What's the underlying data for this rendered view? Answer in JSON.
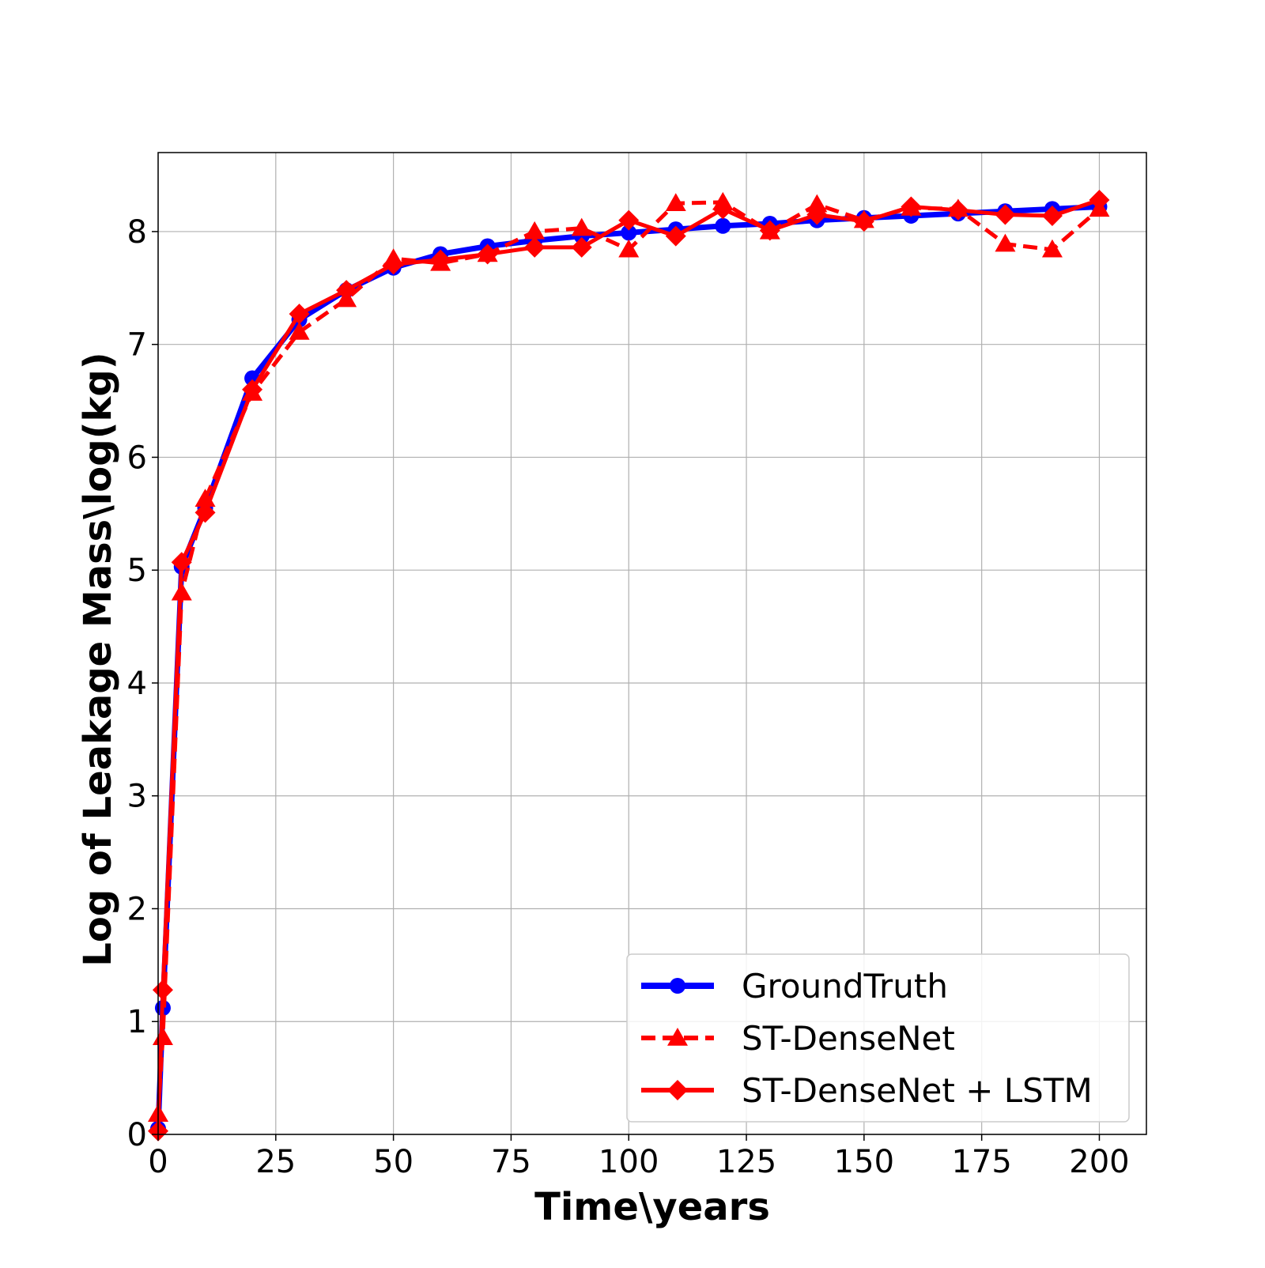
{
  "chart_data": {
    "type": "line",
    "title": "",
    "xlabel": "Time\\years",
    "ylabel": "Log of Leakage Mass\\log(kg)",
    "xlim": [
      0,
      210
    ],
    "ylim": [
      0,
      8.7
    ],
    "xticks": [
      0,
      25,
      50,
      75,
      100,
      125,
      150,
      175,
      200
    ],
    "yticks": [
      0,
      1,
      2,
      3,
      4,
      5,
      6,
      7,
      8
    ],
    "grid": true,
    "legend_position": "lower-right",
    "x": [
      0,
      1,
      5,
      10,
      20,
      30,
      40,
      50,
      60,
      70,
      80,
      90,
      100,
      110,
      120,
      130,
      140,
      150,
      160,
      170,
      180,
      190,
      200
    ],
    "series": [
      {
        "name": "GroundTruth",
        "color": "#0000ff",
        "line_style": "solid",
        "marker": "circle",
        "values": [
          0.05,
          1.12,
          5.03,
          5.55,
          6.7,
          7.22,
          7.48,
          7.68,
          7.8,
          7.87,
          7.92,
          7.96,
          7.99,
          8.02,
          8.05,
          8.07,
          8.1,
          8.12,
          8.14,
          8.16,
          8.18,
          8.2,
          8.22
        ]
      },
      {
        "name": "ST-DenseNet",
        "color": "#ff0000",
        "line_style": "dashed",
        "marker": "triangle",
        "values": [
          0.18,
          0.86,
          4.8,
          5.63,
          6.57,
          7.11,
          7.4,
          7.76,
          7.72,
          7.8,
          8.0,
          8.03,
          7.84,
          8.25,
          8.26,
          8.0,
          8.24,
          8.1,
          8.21,
          8.2,
          7.89,
          7.84,
          8.2
        ]
      },
      {
        "name": "ST-DenseNet + LSTM",
        "color": "#ff0000",
        "line_style": "solid",
        "marker": "diamond",
        "values": [
          0.03,
          1.28,
          5.07,
          5.51,
          6.6,
          7.27,
          7.48,
          7.71,
          7.75,
          7.8,
          7.86,
          7.86,
          8.1,
          7.96,
          8.2,
          8.01,
          8.15,
          8.09,
          8.22,
          8.19,
          8.15,
          8.14,
          8.28
        ]
      }
    ]
  }
}
